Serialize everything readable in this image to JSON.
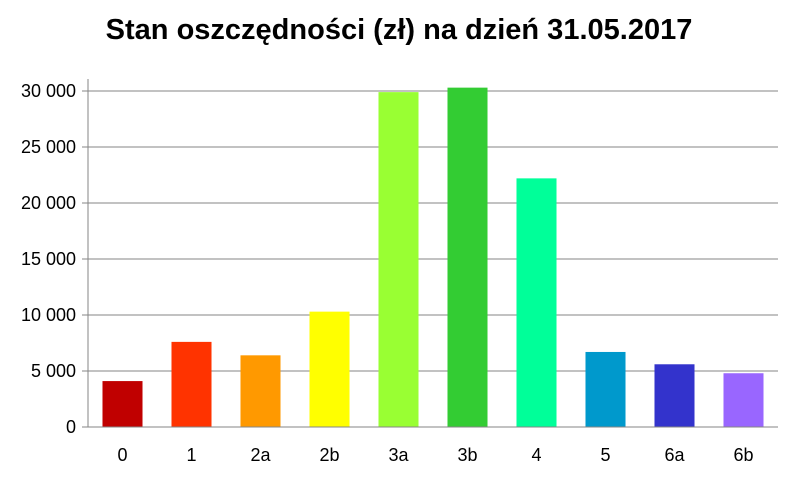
{
  "chart_data": {
    "type": "bar",
    "title": "Stan oszczędności (zł) na dzień 31.05.2017",
    "xlabel": "",
    "ylabel": "",
    "categories": [
      "0",
      "1",
      "2a",
      "2b",
      "3a",
      "3b",
      "4",
      "5",
      "6a",
      "6b"
    ],
    "values": [
      4100,
      7600,
      6400,
      10300,
      29900,
      30300,
      22200,
      6700,
      5600,
      4800
    ],
    "colors": [
      "#c00000",
      "#ff3300",
      "#ff9900",
      "#ffff00",
      "#99ff33",
      "#33cc33",
      "#00ff99",
      "#0099cc",
      "#3333cc",
      "#9966ff"
    ],
    "ylim": [
      0,
      30000
    ],
    "yticks": [
      0,
      5000,
      10000,
      15000,
      20000,
      25000,
      30000
    ],
    "ytick_labels": [
      "0",
      "5 000",
      "10 000",
      "15 000",
      "20 000",
      "25 000",
      "30 000"
    ],
    "grid": true,
    "legend": "none"
  }
}
